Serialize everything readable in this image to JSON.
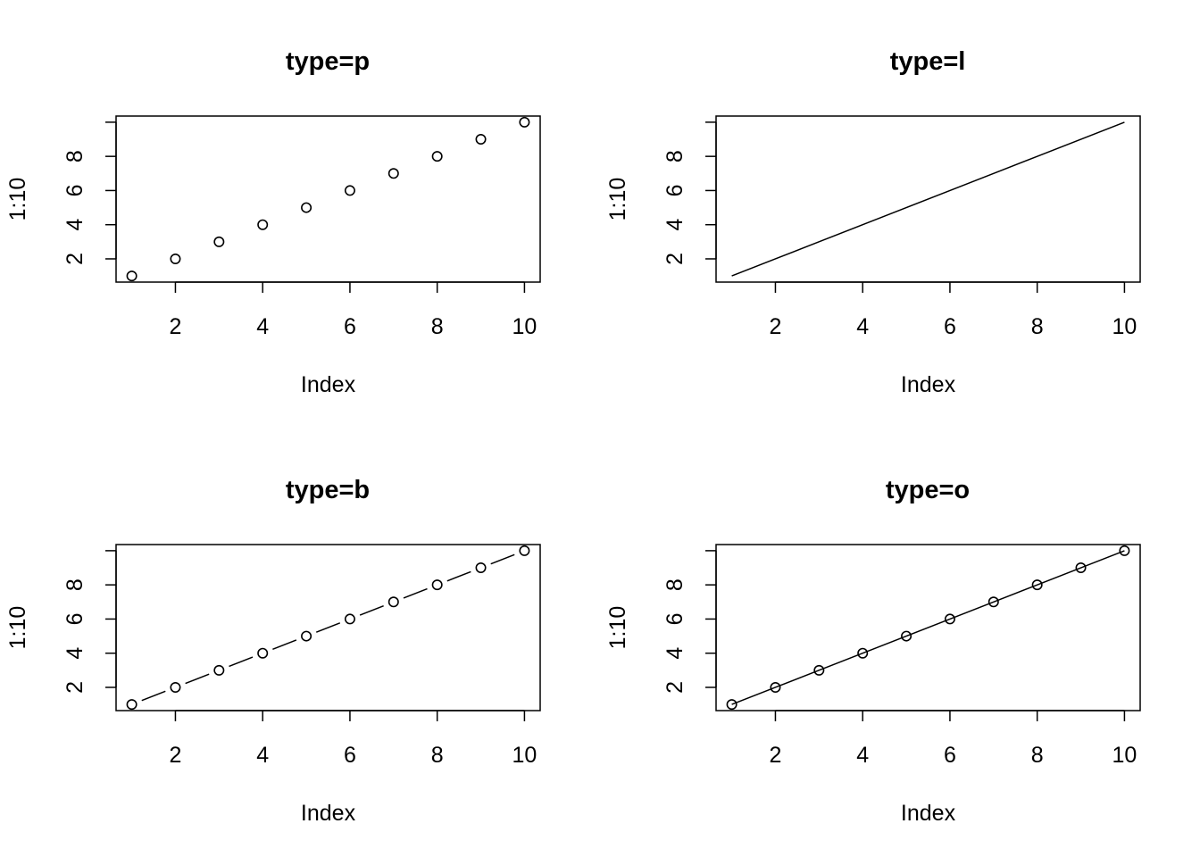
{
  "chart_data": [
    {
      "type": "scatter",
      "title": "type=p",
      "xlabel": "Index",
      "ylabel": "1:10",
      "plot_type": "p",
      "line_style": "none",
      "markers": "open-circle",
      "x": [
        1,
        2,
        3,
        4,
        5,
        6,
        7,
        8,
        9,
        10
      ],
      "y": [
        1,
        2,
        3,
        4,
        5,
        6,
        7,
        8,
        9,
        10
      ],
      "xlim": [
        0.64,
        10.36
      ],
      "ylim": [
        0.64,
        10.36
      ],
      "xticks": [
        2,
        4,
        6,
        8,
        10
      ],
      "yticks": [
        2,
        4,
        6,
        8,
        10
      ],
      "xtick_labels": [
        "2",
        "4",
        "6",
        "8",
        "10"
      ],
      "ytick_labels": [
        "2",
        "4",
        "6",
        "8",
        ""
      ],
      "grid": false
    },
    {
      "type": "line",
      "title": "type=l",
      "xlabel": "Index",
      "ylabel": "1:10",
      "plot_type": "l",
      "line_style": "solid",
      "markers": "none",
      "x": [
        1,
        2,
        3,
        4,
        5,
        6,
        7,
        8,
        9,
        10
      ],
      "y": [
        1,
        2,
        3,
        4,
        5,
        6,
        7,
        8,
        9,
        10
      ],
      "xlim": [
        0.64,
        10.36
      ],
      "ylim": [
        0.64,
        10.36
      ],
      "xticks": [
        2,
        4,
        6,
        8,
        10
      ],
      "yticks": [
        2,
        4,
        6,
        8,
        10
      ],
      "xtick_labels": [
        "2",
        "4",
        "6",
        "8",
        "10"
      ],
      "ytick_labels": [
        "2",
        "4",
        "6",
        "8",
        ""
      ],
      "grid": false
    },
    {
      "type": "line",
      "title": "type=b",
      "xlabel": "Index",
      "ylabel": "1:10",
      "plot_type": "b",
      "line_style": "gapped",
      "markers": "open-circle",
      "x": [
        1,
        2,
        3,
        4,
        5,
        6,
        7,
        8,
        9,
        10
      ],
      "y": [
        1,
        2,
        3,
        4,
        5,
        6,
        7,
        8,
        9,
        10
      ],
      "xlim": [
        0.64,
        10.36
      ],
      "ylim": [
        0.64,
        10.36
      ],
      "xticks": [
        2,
        4,
        6,
        8,
        10
      ],
      "yticks": [
        2,
        4,
        6,
        8,
        10
      ],
      "xtick_labels": [
        "2",
        "4",
        "6",
        "8",
        "10"
      ],
      "ytick_labels": [
        "2",
        "4",
        "6",
        "8",
        ""
      ],
      "grid": false
    },
    {
      "type": "line",
      "title": "type=o",
      "xlabel": "Index",
      "ylabel": "1:10",
      "plot_type": "o",
      "line_style": "solid",
      "markers": "open-circle",
      "x": [
        1,
        2,
        3,
        4,
        5,
        6,
        7,
        8,
        9,
        10
      ],
      "y": [
        1,
        2,
        3,
        4,
        5,
        6,
        7,
        8,
        9,
        10
      ],
      "xlim": [
        0.64,
        10.36
      ],
      "ylim": [
        0.64,
        10.36
      ],
      "xticks": [
        2,
        4,
        6,
        8,
        10
      ],
      "yticks": [
        2,
        4,
        6,
        8,
        10
      ],
      "xtick_labels": [
        "2",
        "4",
        "6",
        "8",
        "10"
      ],
      "ytick_labels": [
        "2",
        "4",
        "6",
        "8",
        ""
      ],
      "grid": false
    }
  ],
  "colors": {
    "ink": "#000000",
    "background": "#ffffff"
  }
}
